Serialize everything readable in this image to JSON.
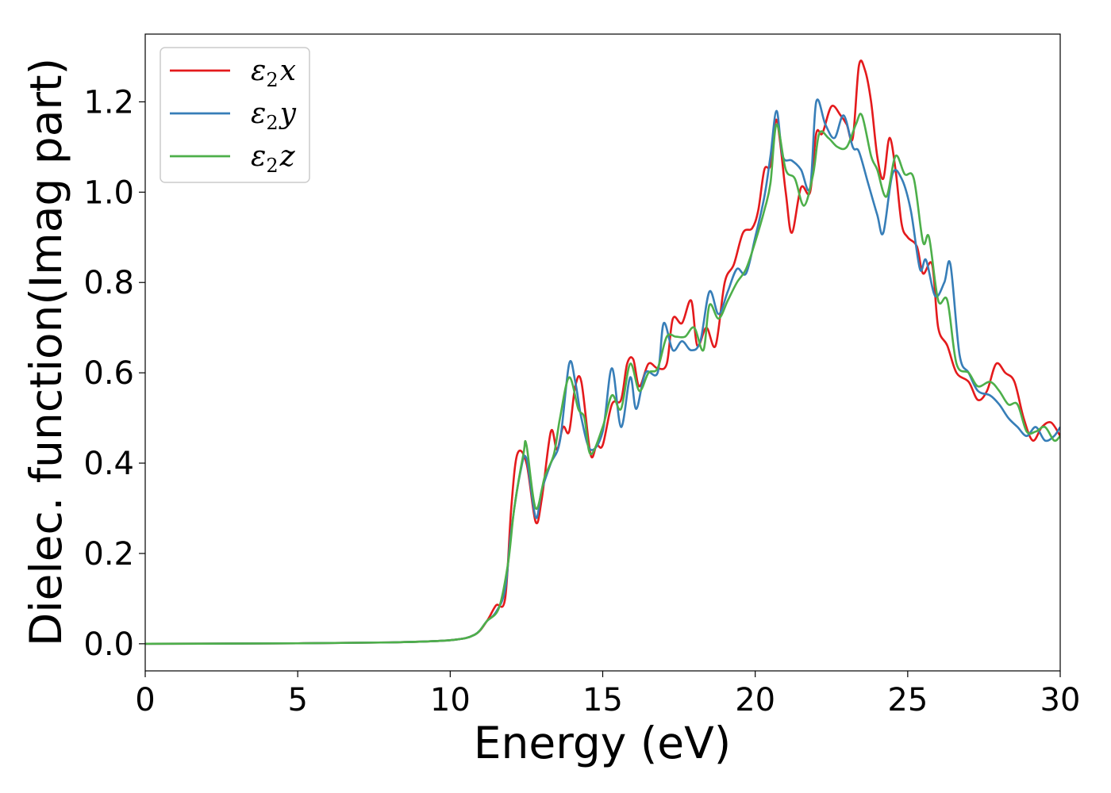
{
  "chart_data": {
    "type": "line",
    "xlabel": "Energy (eV)",
    "ylabel": "Dielec. function(Imag part)",
    "xlim": [
      0,
      30
    ],
    "ylim": [
      -0.06,
      1.35
    ],
    "xticks": [
      0,
      5,
      10,
      15,
      20,
      25,
      30
    ],
    "yticks": [
      0.0,
      0.2,
      0.4,
      0.6,
      0.8,
      1.0,
      1.2
    ],
    "grid": false,
    "legend_position": "top-left",
    "series": [
      {
        "name": "ε₂x",
        "legend_main": "ε",
        "legend_sub": "2",
        "legend_tail": "x",
        "color": "#e41a1c",
        "points": [
          [
            0,
            0.0
          ],
          [
            5,
            0.001
          ],
          [
            8,
            0.003
          ],
          [
            10,
            0.008
          ],
          [
            10.8,
            0.02
          ],
          [
            11.2,
            0.05
          ],
          [
            11.5,
            0.085
          ],
          [
            11.8,
            0.1
          ],
          [
            12.0,
            0.3
          ],
          [
            12.2,
            0.42
          ],
          [
            12.5,
            0.4
          ],
          [
            12.8,
            0.27
          ],
          [
            13.0,
            0.32
          ],
          [
            13.3,
            0.47
          ],
          [
            13.5,
            0.43
          ],
          [
            13.7,
            0.48
          ],
          [
            13.9,
            0.47
          ],
          [
            14.1,
            0.57
          ],
          [
            14.3,
            0.58
          ],
          [
            14.6,
            0.42
          ],
          [
            14.8,
            0.44
          ],
          [
            15.0,
            0.44
          ],
          [
            15.3,
            0.53
          ],
          [
            15.6,
            0.54
          ],
          [
            15.8,
            0.62
          ],
          [
            16.0,
            0.63
          ],
          [
            16.2,
            0.57
          ],
          [
            16.5,
            0.62
          ],
          [
            16.8,
            0.61
          ],
          [
            17.1,
            0.62
          ],
          [
            17.3,
            0.72
          ],
          [
            17.6,
            0.71
          ],
          [
            17.9,
            0.76
          ],
          [
            18.1,
            0.66
          ],
          [
            18.4,
            0.7
          ],
          [
            18.7,
            0.66
          ],
          [
            19.0,
            0.8
          ],
          [
            19.3,
            0.84
          ],
          [
            19.6,
            0.91
          ],
          [
            19.9,
            0.92
          ],
          [
            20.1,
            0.96
          ],
          [
            20.3,
            1.05
          ],
          [
            20.5,
            1.06
          ],
          [
            20.7,
            1.16
          ],
          [
            21.0,
            1.0
          ],
          [
            21.2,
            0.91
          ],
          [
            21.5,
            1.01
          ],
          [
            21.8,
            1.0
          ],
          [
            22.0,
            1.13
          ],
          [
            22.2,
            1.13
          ],
          [
            22.5,
            1.19
          ],
          [
            22.8,
            1.17
          ],
          [
            23.0,
            1.15
          ],
          [
            23.2,
            1.12
          ],
          [
            23.4,
            1.28
          ],
          [
            23.6,
            1.27
          ],
          [
            23.8,
            1.2
          ],
          [
            24.0,
            1.08
          ],
          [
            24.2,
            1.03
          ],
          [
            24.4,
            1.12
          ],
          [
            24.6,
            1.05
          ],
          [
            24.8,
            0.93
          ],
          [
            25.0,
            0.9
          ],
          [
            25.3,
            0.88
          ],
          [
            25.5,
            0.82
          ],
          [
            25.8,
            0.84
          ],
          [
            26.0,
            0.7
          ],
          [
            26.3,
            0.66
          ],
          [
            26.6,
            0.6
          ],
          [
            27.0,
            0.58
          ],
          [
            27.3,
            0.54
          ],
          [
            27.6,
            0.56
          ],
          [
            27.9,
            0.62
          ],
          [
            28.2,
            0.6
          ],
          [
            28.5,
            0.58
          ],
          [
            28.8,
            0.5
          ],
          [
            29.1,
            0.45
          ],
          [
            29.4,
            0.48
          ],
          [
            29.7,
            0.49
          ],
          [
            30.0,
            0.46
          ]
        ]
      },
      {
        "name": "ε₂y",
        "legend_main": "ε",
        "legend_sub": "2",
        "legend_tail": "y",
        "color": "#377eb8",
        "points": [
          [
            0,
            0.0
          ],
          [
            5,
            0.001
          ],
          [
            8,
            0.003
          ],
          [
            10,
            0.008
          ],
          [
            10.8,
            0.02
          ],
          [
            11.2,
            0.05
          ],
          [
            11.5,
            0.07
          ],
          [
            11.8,
            0.12
          ],
          [
            12.0,
            0.25
          ],
          [
            12.3,
            0.38
          ],
          [
            12.5,
            0.41
          ],
          [
            12.8,
            0.28
          ],
          [
            13.0,
            0.34
          ],
          [
            13.3,
            0.4
          ],
          [
            13.6,
            0.45
          ],
          [
            13.9,
            0.62
          ],
          [
            14.1,
            0.58
          ],
          [
            14.3,
            0.5
          ],
          [
            14.6,
            0.43
          ],
          [
            15.0,
            0.47
          ],
          [
            15.3,
            0.61
          ],
          [
            15.6,
            0.48
          ],
          [
            15.9,
            0.59
          ],
          [
            16.1,
            0.52
          ],
          [
            16.4,
            0.6
          ],
          [
            16.8,
            0.6
          ],
          [
            17.0,
            0.71
          ],
          [
            17.3,
            0.65
          ],
          [
            17.6,
            0.67
          ],
          [
            17.9,
            0.65
          ],
          [
            18.2,
            0.67
          ],
          [
            18.5,
            0.78
          ],
          [
            18.8,
            0.73
          ],
          [
            19.1,
            0.78
          ],
          [
            19.4,
            0.83
          ],
          [
            19.7,
            0.82
          ],
          [
            20.0,
            0.9
          ],
          [
            20.3,
            0.99
          ],
          [
            20.5,
            1.08
          ],
          [
            20.7,
            1.18
          ],
          [
            20.9,
            1.08
          ],
          [
            21.2,
            1.07
          ],
          [
            21.5,
            1.05
          ],
          [
            21.8,
            1.01
          ],
          [
            22.0,
            1.2
          ],
          [
            22.3,
            1.15
          ],
          [
            22.6,
            1.12
          ],
          [
            22.9,
            1.17
          ],
          [
            23.2,
            1.1
          ],
          [
            23.4,
            1.09
          ],
          [
            23.7,
            1.02
          ],
          [
            24.0,
            0.95
          ],
          [
            24.2,
            0.91
          ],
          [
            24.5,
            1.04
          ],
          [
            24.8,
            1.03
          ],
          [
            25.1,
            0.96
          ],
          [
            25.4,
            0.83
          ],
          [
            25.6,
            0.85
          ],
          [
            25.9,
            0.77
          ],
          [
            26.2,
            0.8
          ],
          [
            26.4,
            0.84
          ],
          [
            26.7,
            0.64
          ],
          [
            27.0,
            0.6
          ],
          [
            27.3,
            0.56
          ],
          [
            27.7,
            0.55
          ],
          [
            28.0,
            0.53
          ],
          [
            28.3,
            0.5
          ],
          [
            28.6,
            0.48
          ],
          [
            28.9,
            0.46
          ],
          [
            29.2,
            0.48
          ],
          [
            29.5,
            0.45
          ],
          [
            29.8,
            0.46
          ],
          [
            30.0,
            0.48
          ]
        ]
      },
      {
        "name": "ε₂z",
        "legend_main": "ε",
        "legend_sub": "2",
        "legend_tail": "z",
        "color": "#4daf4a",
        "points": [
          [
            0,
            0.0
          ],
          [
            5,
            0.001
          ],
          [
            8,
            0.003
          ],
          [
            10,
            0.008
          ],
          [
            10.8,
            0.02
          ],
          [
            11.2,
            0.05
          ],
          [
            11.6,
            0.08
          ],
          [
            11.9,
            0.18
          ],
          [
            12.1,
            0.3
          ],
          [
            12.4,
            0.42
          ],
          [
            12.5,
            0.44
          ],
          [
            12.8,
            0.3
          ],
          [
            13.1,
            0.37
          ],
          [
            13.4,
            0.42
          ],
          [
            13.6,
            0.5
          ],
          [
            13.9,
            0.59
          ],
          [
            14.2,
            0.52
          ],
          [
            14.4,
            0.5
          ],
          [
            14.6,
            0.42
          ],
          [
            15.0,
            0.48
          ],
          [
            15.3,
            0.55
          ],
          [
            15.6,
            0.52
          ],
          [
            15.9,
            0.62
          ],
          [
            16.2,
            0.56
          ],
          [
            16.5,
            0.6
          ],
          [
            16.8,
            0.61
          ],
          [
            17.1,
            0.68
          ],
          [
            17.4,
            0.68
          ],
          [
            17.7,
            0.68
          ],
          [
            18.0,
            0.7
          ],
          [
            18.3,
            0.65
          ],
          [
            18.5,
            0.75
          ],
          [
            18.8,
            0.72
          ],
          [
            19.1,
            0.76
          ],
          [
            19.4,
            0.8
          ],
          [
            19.7,
            0.83
          ],
          [
            20.0,
            0.89
          ],
          [
            20.3,
            0.96
          ],
          [
            20.5,
            1.02
          ],
          [
            20.7,
            1.15
          ],
          [
            21.0,
            1.05
          ],
          [
            21.3,
            1.03
          ],
          [
            21.6,
            0.97
          ],
          [
            21.9,
            1.04
          ],
          [
            22.1,
            1.13
          ],
          [
            22.4,
            1.12
          ],
          [
            22.7,
            1.1
          ],
          [
            23.0,
            1.1
          ],
          [
            23.3,
            1.15
          ],
          [
            23.5,
            1.17
          ],
          [
            23.8,
            1.08
          ],
          [
            24.0,
            1.05
          ],
          [
            24.3,
            0.99
          ],
          [
            24.6,
            1.08
          ],
          [
            24.9,
            1.04
          ],
          [
            25.2,
            1.03
          ],
          [
            25.5,
            0.89
          ],
          [
            25.7,
            0.9
          ],
          [
            26.0,
            0.76
          ],
          [
            26.3,
            0.76
          ],
          [
            26.6,
            0.62
          ],
          [
            27.0,
            0.6
          ],
          [
            27.3,
            0.57
          ],
          [
            27.7,
            0.58
          ],
          [
            28.0,
            0.56
          ],
          [
            28.3,
            0.53
          ],
          [
            28.6,
            0.53
          ],
          [
            28.9,
            0.47
          ],
          [
            29.2,
            0.47
          ],
          [
            29.5,
            0.48
          ],
          [
            29.8,
            0.45
          ],
          [
            30.0,
            0.46
          ]
        ]
      }
    ]
  }
}
